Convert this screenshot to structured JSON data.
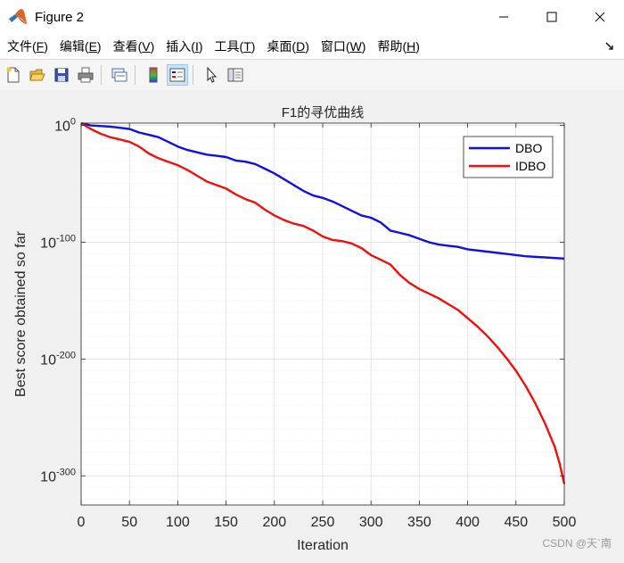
{
  "window": {
    "title": "Figure 2",
    "minimize_icon": "minimize-icon",
    "maximize_icon": "maximize-icon",
    "close_icon": "close-icon"
  },
  "menu": [
    {
      "label": "文件(",
      "key": "F",
      "end": ")"
    },
    {
      "label": "编辑(",
      "key": "E",
      "end": ")"
    },
    {
      "label": "查看(",
      "key": "V",
      "end": ")"
    },
    {
      "label": "插入(",
      "key": "I",
      "end": ")"
    },
    {
      "label": "工具(",
      "key": "T",
      "end": ")"
    },
    {
      "label": "桌面(",
      "key": "D",
      "end": ")"
    },
    {
      "label": "窗口(",
      "key": "W",
      "end": ")"
    },
    {
      "label": "帮助(",
      "key": "H",
      "end": ")"
    }
  ],
  "toolbar": {
    "icons": [
      "new-figure-icon",
      "open-file-icon",
      "save-icon",
      "print-icon",
      "link-plot-icon",
      "colorbar-icon",
      "legend-icon",
      "pointer-icon",
      "property-editor-icon"
    ],
    "active": "legend-icon"
  },
  "watermark": "CSDN @天`南",
  "colors": {
    "dbo": "#1010e0",
    "idbo": "#f01010",
    "grid": "#e3e3e3"
  },
  "chart_data": {
    "type": "line",
    "title": "F1的寻优曲线",
    "xlabel": "Iteration",
    "ylabel": "Best score obtained so far",
    "xlim": [
      0,
      500
    ],
    "ylim_log10": [
      -325,
      2
    ],
    "y_scale": "log",
    "x_ticks": [
      0,
      50,
      100,
      150,
      200,
      250,
      300,
      350,
      400,
      450,
      500
    ],
    "y_ticks": [
      {
        "base": "10",
        "exp": "0",
        "log10": 0
      },
      {
        "base": "10",
        "exp": "-100",
        "log10": -100
      },
      {
        "base": "10",
        "exp": "-200",
        "log10": -200
      },
      {
        "base": "10",
        "exp": "-300",
        "log10": -300
      }
    ],
    "grid": true,
    "legend_position": "top-right",
    "series": [
      {
        "name": "DBO",
        "x_log10_y": [
          [
            0,
            3
          ],
          [
            10,
            0
          ],
          [
            30,
            -1
          ],
          [
            50,
            -3
          ],
          [
            60,
            -6
          ],
          [
            70,
            -8
          ],
          [
            80,
            -10
          ],
          [
            90,
            -14
          ],
          [
            100,
            -18
          ],
          [
            110,
            -21
          ],
          [
            120,
            -23
          ],
          [
            130,
            -25
          ],
          [
            140,
            -26
          ],
          [
            150,
            -27
          ],
          [
            160,
            -30
          ],
          [
            170,
            -31
          ],
          [
            180,
            -33
          ],
          [
            190,
            -37
          ],
          [
            200,
            -41
          ],
          [
            210,
            -46
          ],
          [
            220,
            -51
          ],
          [
            230,
            -56
          ],
          [
            240,
            -60
          ],
          [
            250,
            -62
          ],
          [
            260,
            -65
          ],
          [
            270,
            -69
          ],
          [
            280,
            -73
          ],
          [
            290,
            -77
          ],
          [
            300,
            -79
          ],
          [
            310,
            -83
          ],
          [
            320,
            -90
          ],
          [
            330,
            -92
          ],
          [
            340,
            -94
          ],
          [
            350,
            -97
          ],
          [
            360,
            -100
          ],
          [
            370,
            -102
          ],
          [
            380,
            -103
          ],
          [
            390,
            -104
          ],
          [
            400,
            -106
          ],
          [
            420,
            -108
          ],
          [
            440,
            -110
          ],
          [
            460,
            -112
          ],
          [
            480,
            -113
          ],
          [
            500,
            -114
          ]
        ]
      },
      {
        "name": "IDBO",
        "x_log10_y": [
          [
            0,
            3
          ],
          [
            10,
            -3
          ],
          [
            20,
            -7
          ],
          [
            30,
            -10
          ],
          [
            40,
            -12
          ],
          [
            50,
            -14
          ],
          [
            60,
            -18
          ],
          [
            70,
            -24
          ],
          [
            80,
            -28
          ],
          [
            90,
            -31
          ],
          [
            100,
            -34
          ],
          [
            110,
            -38
          ],
          [
            120,
            -43
          ],
          [
            130,
            -48
          ],
          [
            140,
            -51
          ],
          [
            150,
            -54
          ],
          [
            160,
            -59
          ],
          [
            170,
            -63
          ],
          [
            180,
            -66
          ],
          [
            190,
            -72
          ],
          [
            200,
            -77
          ],
          [
            210,
            -81
          ],
          [
            220,
            -84
          ],
          [
            230,
            -86
          ],
          [
            240,
            -90
          ],
          [
            250,
            -95
          ],
          [
            260,
            -98
          ],
          [
            270,
            -99
          ],
          [
            280,
            -101
          ],
          [
            290,
            -105
          ],
          [
            300,
            -111
          ],
          [
            310,
            -115
          ],
          [
            320,
            -119
          ],
          [
            330,
            -128
          ],
          [
            340,
            -135
          ],
          [
            350,
            -140
          ],
          [
            360,
            -144
          ],
          [
            370,
            -148
          ],
          [
            380,
            -153
          ],
          [
            390,
            -158
          ],
          [
            400,
            -165
          ],
          [
            410,
            -172
          ],
          [
            420,
            -180
          ],
          [
            430,
            -189
          ],
          [
            440,
            -199
          ],
          [
            450,
            -210
          ],
          [
            460,
            -223
          ],
          [
            470,
            -238
          ],
          [
            480,
            -255
          ],
          [
            490,
            -275
          ],
          [
            495,
            -289
          ],
          [
            500,
            -307
          ]
        ]
      }
    ]
  }
}
